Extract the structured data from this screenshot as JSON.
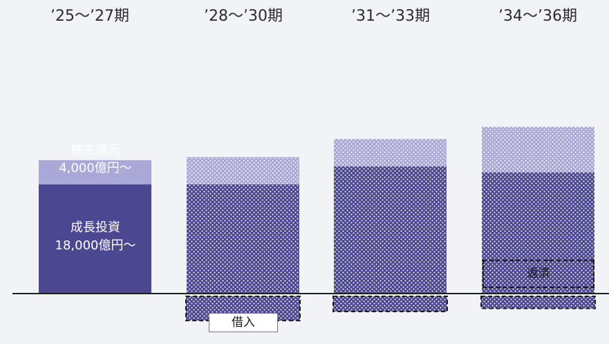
{
  "chart_data": {
    "type": "bar",
    "stacked": true,
    "categories": [
      "’25～’27期",
      "’28～’30期",
      "’31～’33期",
      "’34～’36期"
    ],
    "series": [
      {
        "name": "成長投資",
        "values": [
          18000,
          18000,
          21000,
          20000
        ],
        "color": "#4c4791"
      },
      {
        "name": "株主還元",
        "values": [
          4000,
          4500,
          4500,
          7500
        ],
        "color": "#a9a8d6"
      }
    ],
    "below_axis": [
      0,
      -4000,
      -2500,
      -2000
    ],
    "ylim": [
      -4500,
      28000
    ],
    "title": "",
    "xlabel": "",
    "ylabel": "",
    "grid": false,
    "legend": "none"
  },
  "labels": {
    "shareholder_return": "株主還元",
    "shareholder_return_amount": "4,000億円～",
    "growth_investment": "成長投資",
    "growth_investment_amount": "18,000億円～",
    "borrowing": "借入",
    "repayment": "返済"
  },
  "colors": {
    "background": "#f2f3f6",
    "dark": "#4c4791",
    "light": "#a9a8d6",
    "dots": "#ffffff"
  }
}
